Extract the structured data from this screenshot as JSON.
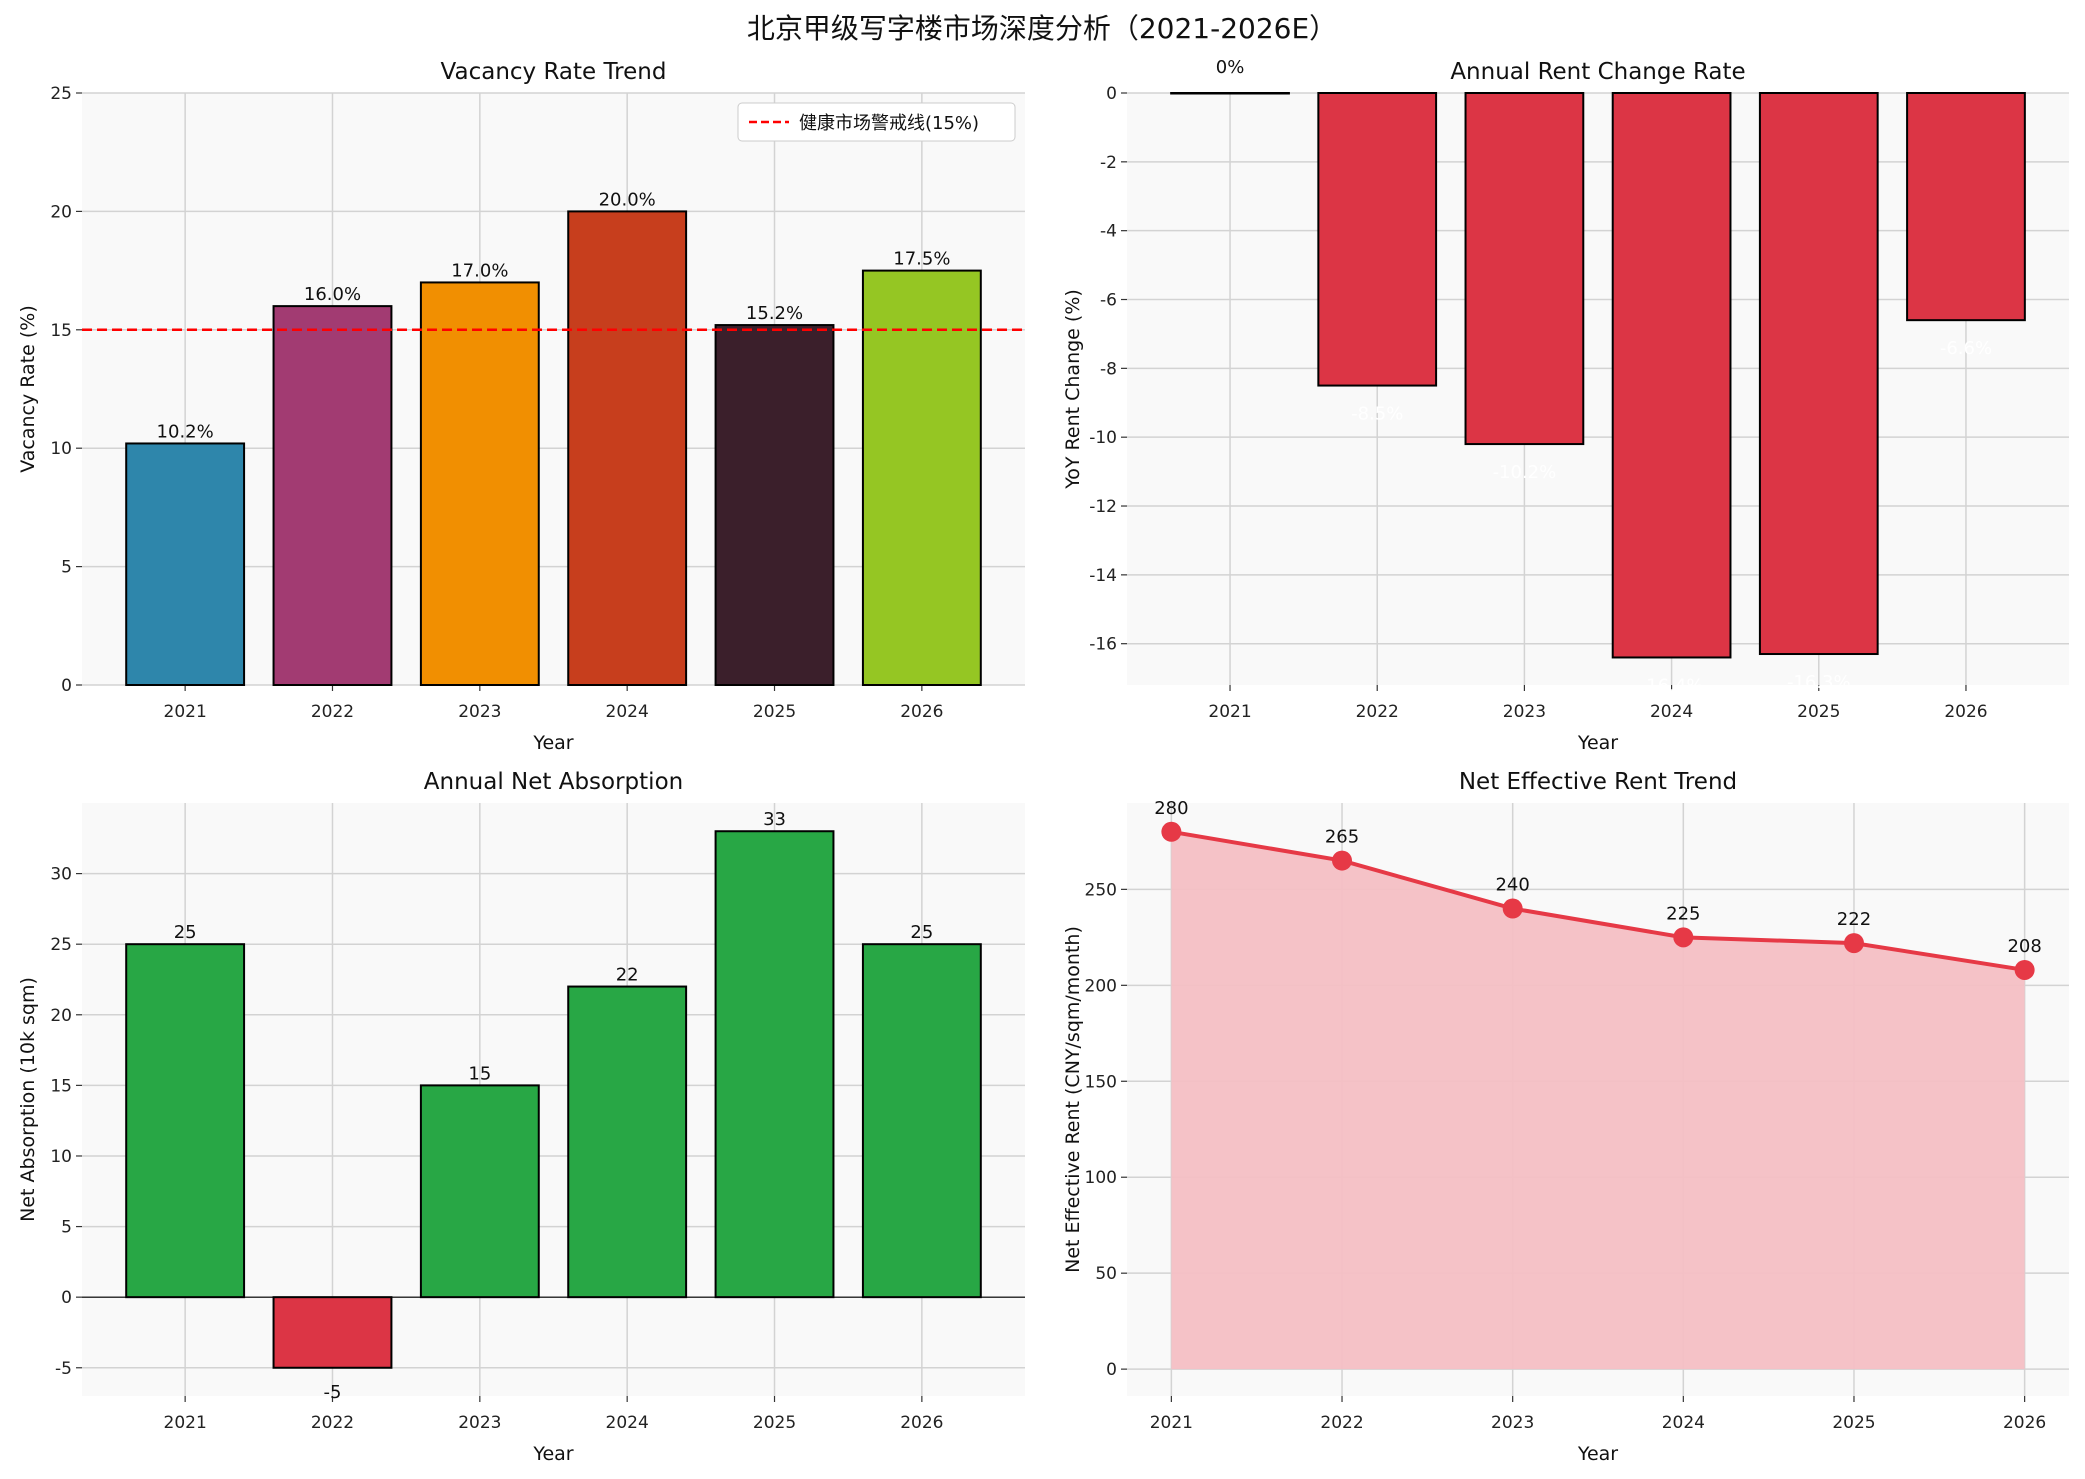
{
  "title": "北京甲级写字楼市场深度分析（2021-2026E）",
  "chart_data": [
    {
      "type": "bar",
      "title": "Vacancy Rate Trend",
      "xlabel": "Year",
      "ylabel": "Vacancy Rate (%)",
      "categories": [
        "2021",
        "2022",
        "2023",
        "2024",
        "2025",
        "2026"
      ],
      "values": [
        10.2,
        16.0,
        17.0,
        20.0,
        15.2,
        17.5
      ],
      "data_labels": [
        "10.2%",
        "16.0%",
        "17.0%",
        "20.0%",
        "15.2%",
        "17.5%"
      ],
      "colors": [
        "#2E86AB",
        "#A23B72",
        "#F18F01",
        "#C73E1D",
        "#3B1F2B",
        "#95C623"
      ],
      "ylim": [
        0,
        25
      ],
      "yticks": [
        0,
        5,
        10,
        15,
        20,
        25
      ],
      "reference_line": {
        "value": 15,
        "label": "健康市场警戒线(15%)",
        "color": "#FF0000",
        "style": "dashed"
      },
      "legend": "top-right",
      "grid": true
    },
    {
      "type": "bar",
      "title": "Annual Rent Change Rate",
      "xlabel": "Year",
      "ylabel": "YoY Rent Change (%)",
      "categories": [
        "2021",
        "2022",
        "2023",
        "2024",
        "2025",
        "2026"
      ],
      "values": [
        0,
        -8.5,
        -10.2,
        -16.4,
        -16.3,
        -6.6
      ],
      "data_labels": [
        "0%",
        "-8.5%",
        "-10.2%",
        "-16.4%",
        "-16.3%",
        "-6.6%"
      ],
      "color": "#DC3545",
      "ylim": [
        -17.2,
        0
      ],
      "yticks": [
        0,
        -2,
        -4,
        -6,
        -8,
        -10,
        -12,
        -14,
        -16
      ],
      "grid": true
    },
    {
      "type": "bar",
      "title": "Annual Net Absorption",
      "xlabel": "Year",
      "ylabel": "Net Absorption (10k sqm)",
      "categories": [
        "2021",
        "2022",
        "2023",
        "2024",
        "2025",
        "2026"
      ],
      "values": [
        25,
        -5,
        15,
        22,
        33,
        25
      ],
      "data_labels": [
        "25",
        "-5",
        "15",
        "22",
        "33",
        "25"
      ],
      "positive_color": "#28A745",
      "negative_color": "#DC3545",
      "ylim": [
        -7,
        35
      ],
      "yticks": [
        -5,
        0,
        5,
        10,
        15,
        20,
        25,
        30
      ],
      "grid": true
    },
    {
      "type": "area",
      "title": "Net Effective Rent Trend",
      "xlabel": "Year",
      "ylabel": "Net Effective Rent (CNY/sqm/month)",
      "x": [
        "2021",
        "2022",
        "2023",
        "2024",
        "2025",
        "2026"
      ],
      "values": [
        280,
        265,
        240,
        225,
        222,
        208
      ],
      "data_labels": [
        "280",
        "265",
        "240",
        "225",
        "222",
        "208"
      ],
      "color": "#E63946",
      "fill_color": "#F4BFC4",
      "ylim": [
        -14,
        295
      ],
      "yticks": [
        0,
        50,
        100,
        150,
        200,
        250
      ],
      "grid": true
    }
  ]
}
